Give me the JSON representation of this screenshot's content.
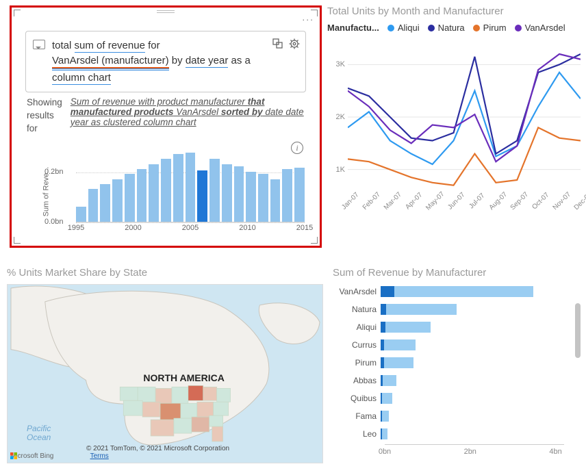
{
  "qa_card": {
    "query_parts": {
      "p1": "total ",
      "p2": "sum of revenue",
      "p3": " for ",
      "p4": "VanArsdel (manufacturer)",
      "p5": " by ",
      "p6": "date year",
      "p7": " as a ",
      "p8": "column chart"
    },
    "showing_label_l1": "Showing",
    "showing_label_l2": "results",
    "showing_label_l3": "for",
    "showing_text_p1": "Sum of revenue with product manufacturer ",
    "showing_text_bold1": "that manufactured products",
    "showing_text_p2": " VanArsdel ",
    "showing_text_bold2": "sorted by",
    "showing_text_p3": " date date year as clustered column chart",
    "icons": {
      "more": "...",
      "info": "i",
      "chat": "chat-icon",
      "link": "link-icon",
      "gear": "gear-icon"
    }
  },
  "col_chart": {
    "type": "bar",
    "ylabel": "Sum of Reve...",
    "yticks": [
      {
        "label": "0.2bn",
        "value": 0.2
      },
      {
        "label": "0.0bn",
        "value": 0.0
      }
    ],
    "ymax": 0.3,
    "xticks": [
      "1995",
      "2000",
      "2005",
      "2010",
      "2015"
    ],
    "years_start": 1997,
    "values": [
      0.06,
      0.13,
      0.15,
      0.17,
      0.19,
      0.21,
      0.23,
      0.25,
      0.27,
      0.275,
      0.205,
      0.25,
      0.23,
      0.22,
      0.2,
      0.19,
      0.17,
      0.21,
      0.215
    ],
    "bar_color": "#91c3ec",
    "bar_highlight_color": "#1f77d6",
    "highlight_index": 10,
    "grid_color": "#cccccc",
    "background": "#ffffff"
  },
  "line_chart": {
    "type": "line",
    "title": "Total Units by Month and Manufacturer",
    "legend_label": "Manufactu...",
    "series": [
      {
        "name": "Aliqui",
        "color": "#2e9af0",
        "values": [
          1.8,
          2.1,
          1.55,
          1.3,
          1.1,
          1.55,
          2.5,
          1.25,
          1.45,
          2.2,
          2.85,
          2.35
        ]
      },
      {
        "name": "Natura",
        "color": "#2b2ea0",
        "values": [
          2.55,
          2.4,
          2.0,
          1.6,
          1.55,
          1.7,
          3.15,
          1.3,
          1.55,
          2.85,
          3.0,
          3.2
        ]
      },
      {
        "name": "Pirum",
        "color": "#e4742b",
        "values": [
          1.2,
          1.15,
          1.0,
          0.85,
          0.75,
          0.7,
          1.3,
          0.75,
          0.8,
          1.8,
          1.6,
          1.55
        ]
      },
      {
        "name": "VanArsdel",
        "color": "#6a2dbb",
        "values": [
          2.5,
          2.2,
          1.75,
          1.5,
          1.85,
          1.8,
          2.05,
          1.15,
          1.45,
          2.9,
          3.2,
          3.1
        ]
      }
    ],
    "xlabels": [
      "Jan-07",
      "Feb-07",
      "Mar-07",
      "Apr-07",
      "May-07",
      "Jun-07",
      "Jul-07",
      "Aug-07",
      "Sep-07",
      "Oct-07",
      "Nov-07",
      "Dec-07"
    ],
    "yticks": [
      1,
      2,
      3
    ],
    "ytick_labels": [
      "1K",
      "2K",
      "3K"
    ],
    "ymin": 0.5,
    "ymax": 3.5,
    "line_width": 2.2,
    "background": "#ffffff"
  },
  "map_panel": {
    "title": "% Units Market Share by State",
    "continent_label": "NORTH AMERICA",
    "ocean_label_l1": "Pacific",
    "ocean_label_l2": "Ocean",
    "bing_text": "Microsoft Bing",
    "attribution": "© 2021 TomTom, © 2021 Microsoft Corporation",
    "terms_text": "Terms",
    "water_color": "#cfe6f2",
    "land_color": "#f2f0ec",
    "state_colors": {
      "low": "#cfe7dc",
      "mid": "#e9c8b8",
      "high": "#d46b56"
    }
  },
  "hbar_chart": {
    "type": "bar_horizontal",
    "title": "Sum of Revenue by Manufacturer",
    "xmax": 4.2,
    "xticks": [
      {
        "v": 0,
        "label": "0bn"
      },
      {
        "v": 2,
        "label": "2bn"
      },
      {
        "v": 4,
        "label": "4bn"
      }
    ],
    "seg_colors": {
      "dark": "#1a6fc4",
      "light": "#9acdf2"
    },
    "rows": [
      {
        "label": "VanArsdel",
        "dark": 0.3,
        "light": 3.05
      },
      {
        "label": "Natura",
        "dark": 0.12,
        "light": 1.55
      },
      {
        "label": "Aliqui",
        "dark": 0.1,
        "light": 1.0
      },
      {
        "label": "Currus",
        "dark": 0.08,
        "light": 0.68
      },
      {
        "label": "Pirum",
        "dark": 0.07,
        "light": 0.65
      },
      {
        "label": "Abbas",
        "dark": 0.04,
        "light": 0.3
      },
      {
        "label": "Quibus",
        "dark": 0.03,
        "light": 0.22
      },
      {
        "label": "Fama",
        "dark": 0.03,
        "light": 0.15
      },
      {
        "label": "Leo",
        "dark": 0.03,
        "light": 0.12
      }
    ],
    "background": "#ffffff",
    "scroll_thumb_color": "#c4c4c4"
  }
}
